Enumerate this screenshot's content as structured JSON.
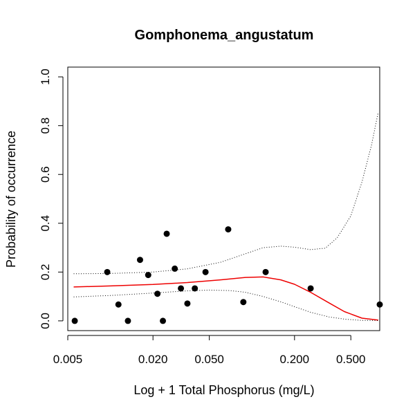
{
  "chart_data": {
    "type": "scatter",
    "title": "Gomphonema_angustatum",
    "xlabel": "Log + 1 Total Phosphorus (mg/L)",
    "ylabel": "Probability of occurrence",
    "x_scale": "log",
    "xlim": [
      0.005,
      0.8
    ],
    "ylim": [
      -0.04,
      1.04
    ],
    "x_ticks": [
      {
        "value": 0.005,
        "label": "0.005"
      },
      {
        "value": 0.02,
        "label": "0.020"
      },
      {
        "value": 0.05,
        "label": "0.050"
      },
      {
        "value": 0.2,
        "label": "0.200"
      },
      {
        "value": 0.5,
        "label": "0.500"
      }
    ],
    "y_ticks": [
      {
        "value": 0.0,
        "label": "0.0"
      },
      {
        "value": 0.2,
        "label": "0.2"
      },
      {
        "value": 0.4,
        "label": "0.4"
      },
      {
        "value": 0.6,
        "label": "0.6"
      },
      {
        "value": 0.8,
        "label": "0.8"
      },
      {
        "value": 1.0,
        "label": "1.0"
      }
    ],
    "points": [
      {
        "x": 0.0056,
        "y": 0.0
      },
      {
        "x": 0.0095,
        "y": 0.2
      },
      {
        "x": 0.0114,
        "y": 0.067
      },
      {
        "x": 0.0133,
        "y": 0.0
      },
      {
        "x": 0.0162,
        "y": 0.25
      },
      {
        "x": 0.0185,
        "y": 0.188
      },
      {
        "x": 0.0215,
        "y": 0.111
      },
      {
        "x": 0.0235,
        "y": 0.0
      },
      {
        "x": 0.025,
        "y": 0.357
      },
      {
        "x": 0.0285,
        "y": 0.214
      },
      {
        "x": 0.0315,
        "y": 0.133
      },
      {
        "x": 0.035,
        "y": 0.071
      },
      {
        "x": 0.0395,
        "y": 0.133
      },
      {
        "x": 0.047,
        "y": 0.2
      },
      {
        "x": 0.068,
        "y": 0.375
      },
      {
        "x": 0.087,
        "y": 0.077
      },
      {
        "x": 0.125,
        "y": 0.2
      },
      {
        "x": 0.26,
        "y": 0.133
      },
      {
        "x": 0.8,
        "y": 0.067
      }
    ],
    "series": [
      {
        "role": "fit",
        "color": "#ee0000",
        "style": "solid",
        "x": [
          0.0055,
          0.01,
          0.02,
          0.035,
          0.06,
          0.09,
          0.12,
          0.16,
          0.2,
          0.26,
          0.35,
          0.45,
          0.6,
          0.78
        ],
        "y": [
          0.139,
          0.143,
          0.149,
          0.157,
          0.168,
          0.178,
          0.18,
          0.168,
          0.15,
          0.117,
          0.074,
          0.038,
          0.011,
          0.003
        ]
      },
      {
        "role": "upper-ci",
        "color": "#000000",
        "style": "dotted",
        "x": [
          0.0055,
          0.01,
          0.02,
          0.035,
          0.06,
          0.09,
          0.12,
          0.16,
          0.2,
          0.26,
          0.33,
          0.4,
          0.5,
          0.6,
          0.7,
          0.78
        ],
        "y": [
          0.193,
          0.194,
          0.2,
          0.213,
          0.24,
          0.275,
          0.3,
          0.306,
          0.302,
          0.292,
          0.298,
          0.34,
          0.43,
          0.57,
          0.72,
          0.855
        ]
      },
      {
        "role": "lower-ci",
        "color": "#000000",
        "style": "dotted",
        "x": [
          0.0055,
          0.01,
          0.02,
          0.035,
          0.05,
          0.07,
          0.09,
          0.12,
          0.16,
          0.2,
          0.26,
          0.35,
          0.45,
          0.6,
          0.78
        ],
        "y": [
          0.098,
          0.104,
          0.114,
          0.123,
          0.126,
          0.124,
          0.117,
          0.1,
          0.078,
          0.058,
          0.035,
          0.016,
          0.007,
          0.002,
          0.001
        ]
      }
    ]
  }
}
